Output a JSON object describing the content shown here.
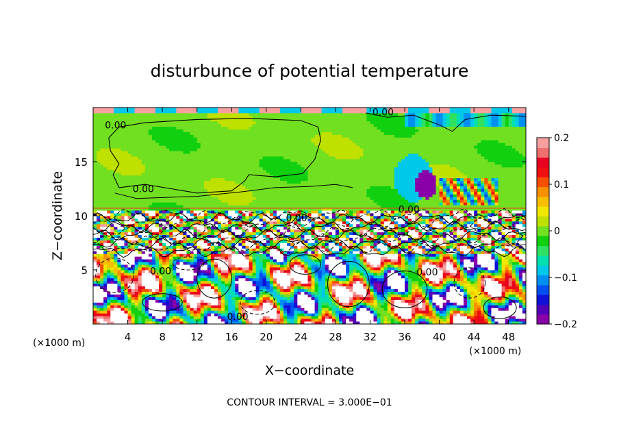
{
  "chart_data": {
    "type": "heatmap",
    "title": "disturbunce of potential temperature",
    "xlabel": "X−coordinate",
    "ylabel": "Z−coordinate",
    "x_unit_left": "(×1000 m)",
    "x_unit_right": "(×1000 m)",
    "xlim": [
      0,
      50
    ],
    "ylim": [
      0,
      20
    ],
    "x_ticks": [
      4,
      8,
      12,
      16,
      20,
      24,
      28,
      32,
      36,
      40,
      44,
      48
    ],
    "y_ticks": [
      5,
      10,
      15
    ],
    "colorbar": {
      "range": [
        -0.2,
        0.2
      ],
      "tick_values": [
        0.2,
        0.1,
        0,
        -0.1,
        -0.2
      ],
      "tick_labels": [
        "0.2",
        "0.1",
        "0",
        "−0.1",
        "−0.2"
      ],
      "colors": [
        "#8a00a8",
        "#5000b8",
        "#1010d8",
        "#0050f0",
        "#0090f0",
        "#00c8e8",
        "#00e0b0",
        "#30e060",
        "#10d010",
        "#70e020",
        "#c0e000",
        "#f0e800",
        "#f8c000",
        "#f89000",
        "#f85000",
        "#f01010",
        "#e80020",
        "#f07070",
        "#f8a0a0"
      ]
    },
    "contour_labels": [
      {
        "text": "0.00",
        "x": 33.5,
        "y": 19.6
      },
      {
        "text": "0.00",
        "x": 2.6,
        "y": 18.4
      },
      {
        "text": "0.00",
        "x": 5.8,
        "y": 12.5
      },
      {
        "text": "0.00",
        "x": 7.8,
        "y": 4.9
      },
      {
        "text": "0.00",
        "x": 38.6,
        "y": 4.8
      },
      {
        "text": "0.00",
        "x": 36.5,
        "y": 10.6
      },
      {
        "text": "0.00",
        "x": 23.5,
        "y": 9.8
      },
      {
        "text": "0.00",
        "x": 16.7,
        "y": 0.7
      }
    ],
    "footer": "CONTOUR INTERVAL = 3.000E−01"
  }
}
